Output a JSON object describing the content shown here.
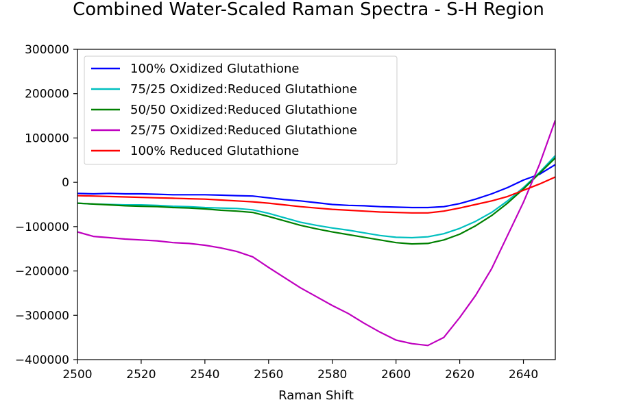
{
  "chart_data": {
    "type": "line",
    "title": "Combined Water-Scaled Raman Spectra - S-H Region",
    "xlabel": "Raman Shift",
    "ylabel": "",
    "xlim": [
      2500,
      2650
    ],
    "ylim": [
      -400000,
      300000
    ],
    "x_ticks": [
      2500,
      2520,
      2540,
      2560,
      2580,
      2600,
      2620,
      2640
    ],
    "x_tick_labels": [
      "2500",
      "2520",
      "2540",
      "2560",
      "2580",
      "2600",
      "2620",
      "2640"
    ],
    "y_ticks": [
      300000,
      200000,
      100000,
      0,
      -100000,
      -200000,
      -300000,
      -400000
    ],
    "y_tick_labels": [
      "300000",
      "200000",
      "100000",
      "0",
      "−100000",
      "−200000",
      "−300000",
      "−400000"
    ],
    "grid": false,
    "legend_position": "top-left",
    "x": [
      2500,
      2505,
      2510,
      2515,
      2520,
      2525,
      2530,
      2535,
      2540,
      2545,
      2550,
      2555,
      2560,
      2565,
      2570,
      2575,
      2580,
      2585,
      2590,
      2595,
      2600,
      2605,
      2610,
      2615,
      2620,
      2625,
      2630,
      2635,
      2640,
      2645,
      2650
    ],
    "series": [
      {
        "name": "100% Oxidized Glutathione",
        "color": "#0000ff",
        "values": [
          -25000,
          -26000,
          -25000,
          -26000,
          -26000,
          -27000,
          -28000,
          -28000,
          -28000,
          -29000,
          -30000,
          -31000,
          -35000,
          -39000,
          -42000,
          -46000,
          -50000,
          -52000,
          -53000,
          -55000,
          -56000,
          -57000,
          -57000,
          -55000,
          -48000,
          -38000,
          -26000,
          -12000,
          5000,
          18000,
          40000
        ]
      },
      {
        "name": "75/25 Oxidized:Reduced Glutathione",
        "color": "#00bfbf",
        "values": [
          -47000,
          -49000,
          -50000,
          -51000,
          -51000,
          -52000,
          -54000,
          -55000,
          -57000,
          -58000,
          -59000,
          -62000,
          -70000,
          -80000,
          -90000,
          -97000,
          -103000,
          -108000,
          -114000,
          -120000,
          -124000,
          -125000,
          -123000,
          -116000,
          -104000,
          -88000,
          -68000,
          -42000,
          -12000,
          22000,
          60000
        ]
      },
      {
        "name": "50/50 Oxidized:Reduced Glutathione",
        "color": "#008000",
        "values": [
          -47000,
          -49000,
          -51000,
          -53000,
          -54000,
          -55000,
          -57000,
          -58000,
          -60000,
          -63000,
          -65000,
          -68000,
          -77000,
          -87000,
          -97000,
          -105000,
          -112000,
          -118000,
          -124000,
          -130000,
          -136000,
          -139000,
          -138000,
          -130000,
          -117000,
          -98000,
          -75000,
          -47000,
          -15000,
          20000,
          55000
        ]
      },
      {
        "name": "25/75 Oxidized:Reduced Glutathione",
        "color": "#bf00bf",
        "values": [
          -112000,
          -122000,
          -125000,
          -128000,
          -130000,
          -132000,
          -136000,
          -138000,
          -142000,
          -148000,
          -156000,
          -168000,
          -192000,
          -215000,
          -238000,
          -258000,
          -278000,
          -296000,
          -318000,
          -338000,
          -356000,
          -364000,
          -368000,
          -350000,
          -305000,
          -255000,
          -195000,
          -120000,
          -45000,
          40000,
          140000
        ]
      },
      {
        "name": "100% Reduced Glutathione",
        "color": "#ff0000",
        "values": [
          -30000,
          -31000,
          -32000,
          -33000,
          -34000,
          -35000,
          -36000,
          -37000,
          -38000,
          -40000,
          -42000,
          -44000,
          -47000,
          -51000,
          -55000,
          -58000,
          -61000,
          -63000,
          -65000,
          -67000,
          -68000,
          -69000,
          -69000,
          -65000,
          -58000,
          -50000,
          -42000,
          -32000,
          -18000,
          -4000,
          12000
        ]
      }
    ]
  }
}
